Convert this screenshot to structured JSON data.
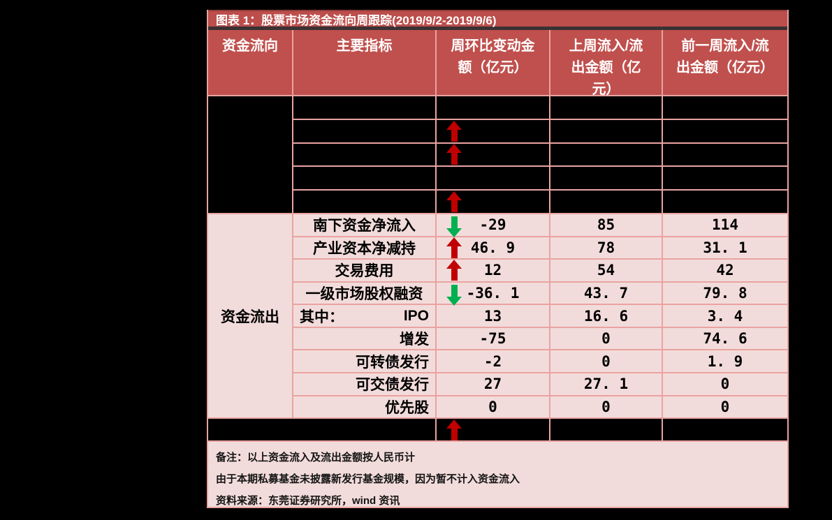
{
  "table": {
    "title": "图表 1：股票市场资金流向周跟踪(2019/9/2-2019/9/6)",
    "columns": [
      "资金流向",
      "主要指标",
      "周环比变动金\n额（亿元）",
      "上周流入/流\n出金额（亿\n元）",
      "前一周流入/流\n出金额（亿元）"
    ],
    "inflow_section": {
      "group_label": "",
      "rows": [
        {
          "label": "",
          "arrow": "none",
          "change": "",
          "last_week": "",
          "prev_week": ""
        },
        {
          "label": "",
          "arrow": "red-up",
          "change": "",
          "last_week": "",
          "prev_week": ""
        },
        {
          "label": "",
          "arrow": "red-up",
          "change": "",
          "last_week": "",
          "prev_week": ""
        },
        {
          "label": "",
          "arrow": "none",
          "change": "",
          "last_week": "",
          "prev_week": ""
        },
        {
          "label": "",
          "arrow": "red-up",
          "change": "",
          "last_week": "",
          "prev_week": ""
        }
      ]
    },
    "outflow_section": {
      "group_label": "资金流出",
      "rows": [
        {
          "label": "南下资金净流入",
          "arrow": "green-down",
          "change": "-29",
          "last_week": "85",
          "prev_week": "114"
        },
        {
          "label": "产业资本净减持",
          "arrow": "red-up",
          "change": "46. 9",
          "last_week": "78",
          "prev_week": "31. 1"
        },
        {
          "label": "交易费用",
          "arrow": "red-up",
          "change": "12",
          "last_week": "54",
          "prev_week": "42"
        },
        {
          "label": "一级市场股权融资",
          "arrow": "green-down",
          "change": "-36. 1",
          "last_week": "43. 7",
          "prev_week": "79. 8"
        },
        {
          "label_left": "其中：",
          "label_right": "IPO",
          "arrow": "none",
          "change": "13",
          "last_week": "16. 6",
          "prev_week": "3. 4"
        },
        {
          "label": "增发",
          "arrow": "none",
          "change": "-75",
          "last_week": "0",
          "prev_week": "74. 6"
        },
        {
          "label": "可转债发行",
          "arrow": "none",
          "change": "-2",
          "last_week": "0",
          "prev_week": "1. 9"
        },
        {
          "label": "可交债发行",
          "arrow": "none",
          "change": "27",
          "last_week": "27. 1",
          "prev_week": "0"
        },
        {
          "label": "优先股",
          "arrow": "none",
          "change": "0",
          "last_week": "0",
          "prev_week": "0"
        }
      ]
    },
    "footer_arrow_row": {
      "arrow": "red-up"
    },
    "notes": [
      "备注：以上资金流入及流出金额按人民币计",
      "由于本期私募基金未披露新发行基金规模，因为暂不计入资金流入",
      "资料来源：东莞证券研究所，wind 资讯"
    ],
    "colors": {
      "header_bg": "#c0504d",
      "cell_pink": "#f2dcdb",
      "grid_border": "#e9a3a1",
      "up_arrow_red": "#c00000",
      "down_arrow_green": "#00b050",
      "page_bg": "#000000"
    }
  }
}
